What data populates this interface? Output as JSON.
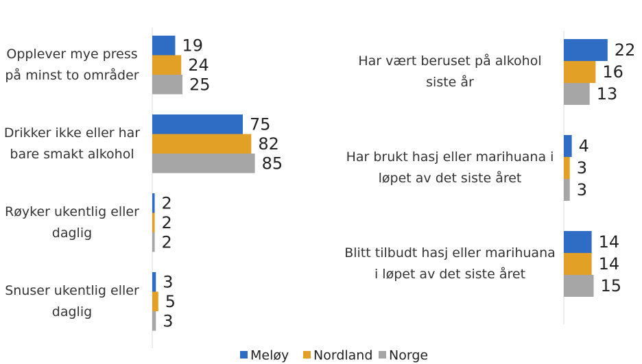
{
  "chart_data": [
    {
      "type": "barh",
      "categories": [
        "Opplever mye press på minst to områder",
        "Drikker ikke eller har bare smakt alkohol",
        "Røyker ukentlig eller daglig",
        "Snuser ukentlig eller daglig"
      ],
      "series": [
        {
          "name": "Meløy",
          "color": "#2f6cc4",
          "values": [
            19,
            75,
            2,
            3
          ]
        },
        {
          "name": "Nordland",
          "color": "#e2a126",
          "values": [
            24,
            82,
            2,
            5
          ]
        },
        {
          "name": "Norge",
          "color": "#a6a6a6",
          "values": [
            25,
            85,
            2,
            3
          ]
        }
      ],
      "xlim": [
        0,
        100
      ]
    },
    {
      "type": "barh",
      "categories": [
        "Har vært beruset på alkohol siste år",
        "Har brukt hasj eller marihuana i løpet av det siste året",
        "Blitt tilbudt hasj eller marihuana i løpet av det siste året"
      ],
      "series": [
        {
          "name": "Meløy",
          "color": "#2f6cc4",
          "values": [
            22,
            4,
            14
          ]
        },
        {
          "name": "Nordland",
          "color": "#e2a126",
          "values": [
            16,
            3,
            14
          ]
        },
        {
          "name": "Norge",
          "color": "#a6a6a6",
          "values": [
            13,
            3,
            15
          ]
        }
      ],
      "xlim": [
        0,
        40
      ]
    }
  ]
}
